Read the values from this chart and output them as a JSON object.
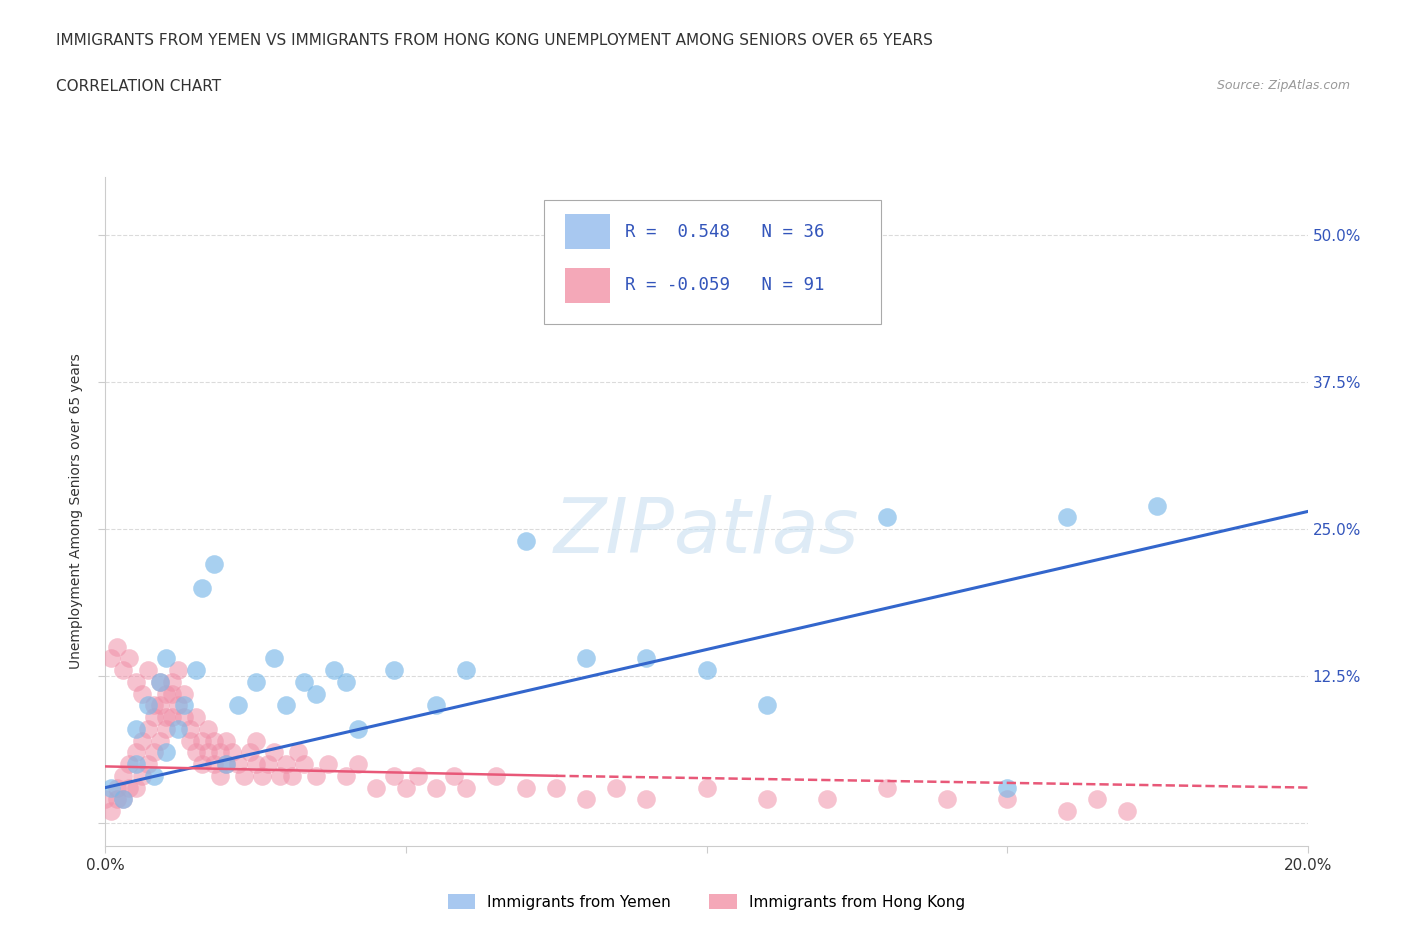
{
  "title_line1": "IMMIGRANTS FROM YEMEN VS IMMIGRANTS FROM HONG KONG UNEMPLOYMENT AMONG SENIORS OVER 65 YEARS",
  "title_line2": "CORRELATION CHART",
  "source": "Source: ZipAtlas.com",
  "ylabel": "Unemployment Among Seniors over 65 years",
  "xlim": [
    0.0,
    0.2
  ],
  "ylim": [
    -0.02,
    0.55
  ],
  "yticks": [
    0.0,
    0.125,
    0.25,
    0.375,
    0.5
  ],
  "right_ytick_labels": [
    "",
    "12.5%",
    "25.0%",
    "37.5%",
    "50.0%"
  ],
  "xticks": [
    0.0,
    0.05,
    0.1,
    0.15,
    0.2
  ],
  "xtick_labels": [
    "0.0%",
    "",
    "",
    "",
    "20.0%"
  ],
  "watermark_text": "ZIPatlas",
  "yemen_color": "#7ab8e8",
  "hk_color": "#f090a8",
  "trendline_yemen_color": "#3366cc",
  "trendline_hk_color": "#e85878",
  "legend_box_color": "#a8c8f0",
  "legend_box_color2": "#f4a8b8",
  "label_color": "#3355bb",
  "background_color": "#ffffff",
  "grid_color": "#cccccc",
  "yemen_R": 0.548,
  "yemen_N": 36,
  "hk_R": -0.059,
  "hk_N": 91,
  "series_yemen_x": [
    0.001,
    0.003,
    0.005,
    0.005,
    0.007,
    0.008,
    0.009,
    0.01,
    0.01,
    0.012,
    0.013,
    0.015,
    0.016,
    0.018,
    0.02,
    0.022,
    0.025,
    0.028,
    0.03,
    0.033,
    0.035,
    0.038,
    0.04,
    0.042,
    0.048,
    0.055,
    0.06,
    0.07,
    0.08,
    0.09,
    0.1,
    0.11,
    0.13,
    0.15,
    0.16,
    0.175
  ],
  "series_yemen_y": [
    0.03,
    0.02,
    0.05,
    0.08,
    0.1,
    0.04,
    0.12,
    0.06,
    0.14,
    0.08,
    0.1,
    0.13,
    0.2,
    0.22,
    0.05,
    0.1,
    0.12,
    0.14,
    0.1,
    0.12,
    0.11,
    0.13,
    0.12,
    0.08,
    0.13,
    0.1,
    0.13,
    0.24,
    0.14,
    0.14,
    0.13,
    0.1,
    0.26,
    0.03,
    0.26,
    0.27
  ],
  "series_hk_x": [
    0.0,
    0.001,
    0.002,
    0.002,
    0.003,
    0.003,
    0.004,
    0.004,
    0.005,
    0.005,
    0.006,
    0.006,
    0.007,
    0.007,
    0.008,
    0.008,
    0.009,
    0.009,
    0.01,
    0.01,
    0.011,
    0.011,
    0.012,
    0.012,
    0.013,
    0.013,
    0.014,
    0.014,
    0.015,
    0.015,
    0.016,
    0.016,
    0.017,
    0.017,
    0.018,
    0.018,
    0.019,
    0.019,
    0.02,
    0.02,
    0.021,
    0.022,
    0.023,
    0.024,
    0.025,
    0.025,
    0.026,
    0.027,
    0.028,
    0.029,
    0.03,
    0.031,
    0.032,
    0.033,
    0.035,
    0.037,
    0.04,
    0.042,
    0.045,
    0.048,
    0.05,
    0.052,
    0.055,
    0.058,
    0.06,
    0.065,
    0.07,
    0.075,
    0.08,
    0.085,
    0.09,
    0.1,
    0.11,
    0.12,
    0.13,
    0.14,
    0.15,
    0.16,
    0.165,
    0.17,
    0.001,
    0.002,
    0.003,
    0.004,
    0.005,
    0.006,
    0.007,
    0.008,
    0.009,
    0.01,
    0.011
  ],
  "series_hk_y": [
    0.02,
    0.01,
    0.02,
    0.03,
    0.02,
    0.04,
    0.03,
    0.05,
    0.03,
    0.06,
    0.04,
    0.07,
    0.05,
    0.08,
    0.06,
    0.09,
    0.07,
    0.1,
    0.08,
    0.11,
    0.09,
    0.12,
    0.1,
    0.13,
    0.09,
    0.11,
    0.07,
    0.08,
    0.06,
    0.09,
    0.05,
    0.07,
    0.06,
    0.08,
    0.05,
    0.07,
    0.04,
    0.06,
    0.05,
    0.07,
    0.06,
    0.05,
    0.04,
    0.06,
    0.05,
    0.07,
    0.04,
    0.05,
    0.06,
    0.04,
    0.05,
    0.04,
    0.06,
    0.05,
    0.04,
    0.05,
    0.04,
    0.05,
    0.03,
    0.04,
    0.03,
    0.04,
    0.03,
    0.04,
    0.03,
    0.04,
    0.03,
    0.03,
    0.02,
    0.03,
    0.02,
    0.03,
    0.02,
    0.02,
    0.03,
    0.02,
    0.02,
    0.01,
    0.02,
    0.01,
    0.14,
    0.15,
    0.13,
    0.14,
    0.12,
    0.11,
    0.13,
    0.1,
    0.12,
    0.09,
    0.11
  ],
  "trendline_yemen_x0": 0.0,
  "trendline_yemen_x1": 0.2,
  "trendline_yemen_y0": 0.03,
  "trendline_yemen_y1": 0.265,
  "trendline_hk_x0": 0.0,
  "trendline_hk_x1": 0.2,
  "trendline_hk_y0": 0.048,
  "trendline_hk_y1": 0.03,
  "trendline_hk_dash_x0": 0.08,
  "trendline_hk_dash_x1": 0.2,
  "trendline_hk_dash_y0": 0.038,
  "trendline_hk_dash_y1": 0.025
}
